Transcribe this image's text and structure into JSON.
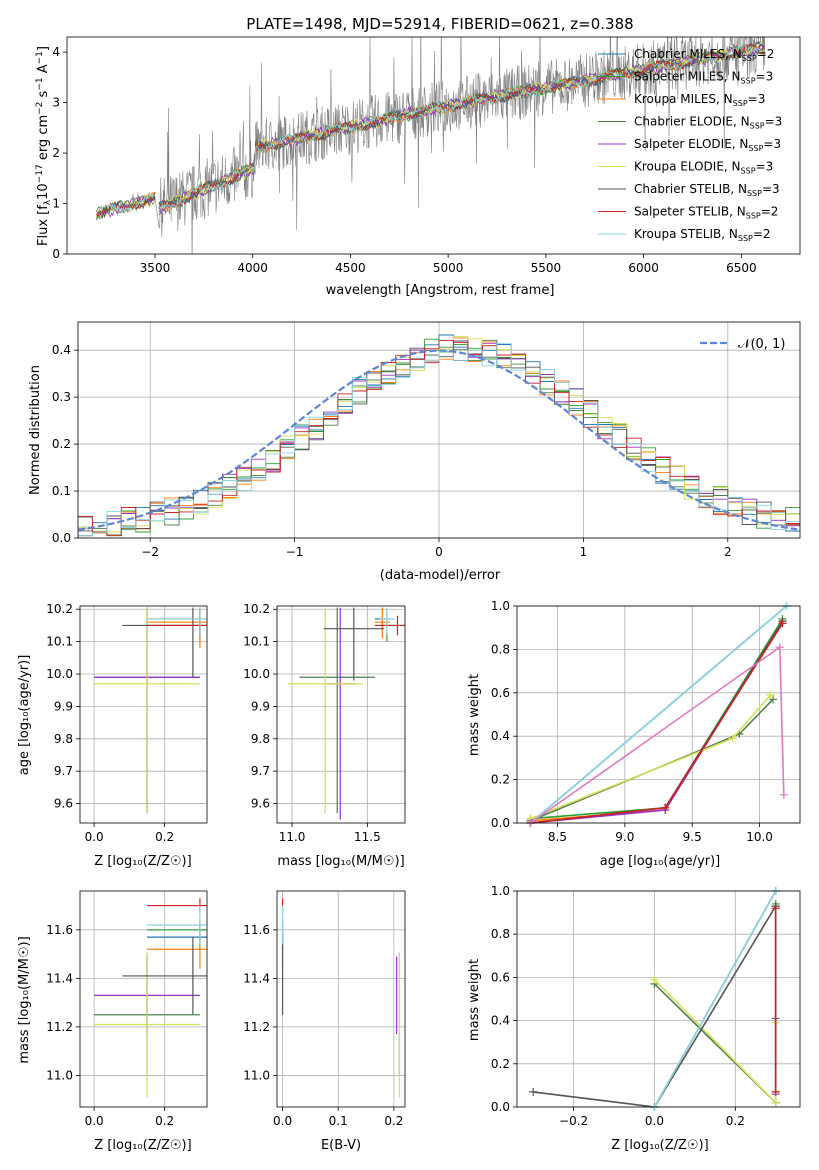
{
  "colors": {
    "Chabrier MILES": "#1f77b4",
    "Salpeter MILES": "#2ca02c",
    "Kroupa MILES": "#ff7f0e",
    "Chabrier ELODIE": "#4f7f4f",
    "Salpeter ELODIE": "#9932cc",
    "Kroupa ELODIE": "#d4e157",
    "Chabrier STELIB": "#555555",
    "Salpeter STELIB": "#cc2222",
    "Kroupa STELIB": "#8fd3e0",
    "data_gray": "#808080",
    "normal_curve": "#5b87d6",
    "pink": "#e377c2"
  },
  "chart_data": [
    {
      "id": "spectrum",
      "type": "line",
      "title": "PLATE=1498, MJD=52914, FIBERID=0621, z=0.388",
      "xlabel": "wavelength [Angstrom, rest frame]",
      "ylabel_main": "Flux [f",
      "ylabel_sub": "λ",
      "ylabel_unit": "10",
      "ylabel_exp": "−17",
      "ylabel_rest": " erg cm",
      "ylabel_exp2": "−2",
      "ylabel_s": " s",
      "ylabel_exp3": "−1",
      "ylabel_a": " A",
      "ylabel_exp4": "−1",
      "ylabel_end": "]",
      "xlim": [
        3050,
        6800
      ],
      "ylim": [
        0,
        4.3
      ],
      "xticks": [
        "3500",
        "4000",
        "4500",
        "5000",
        "5500",
        "6000",
        "6500"
      ],
      "xtick_values": [
        3500,
        4000,
        4500,
        5000,
        5500,
        6000,
        6500
      ],
      "yticks": [
        "0",
        "1",
        "2",
        "3",
        "4"
      ],
      "ytick_values": [
        0,
        1,
        2,
        3,
        4
      ],
      "legend": [
        {
          "name": "Chabrier MILES, N",
          "sub": "SSP",
          "tail": "=2"
        },
        {
          "name": "Salpeter MILES, N",
          "sub": "SSP",
          "tail": "=3"
        },
        {
          "name": "Kroupa MILES, N",
          "sub": "SSP",
          "tail": "=3"
        },
        {
          "name": "Chabrier ELODIE, N",
          "sub": "SSP",
          "tail": "=3"
        },
        {
          "name": "Salpeter ELODIE, N",
          "sub": "SSP",
          "tail": "=3"
        },
        {
          "name": "Kroupa ELODIE, N",
          "sub": "SSP",
          "tail": "=3"
        },
        {
          "name": "Chabrier STELIB, N",
          "sub": "SSP",
          "tail": "=3"
        },
        {
          "name": "Salpeter STELIB, N",
          "sub": "SSP",
          "tail": "=2"
        },
        {
          "name": "Kroupa STELIB, N",
          "sub": "SSP",
          "tail": "=2"
        }
      ],
      "legend_placement": "top-right",
      "model_segments": [
        {
          "x": [
            3200,
            3500
          ],
          "y": [
            0.8,
            1.1
          ]
        },
        {
          "x": [
            3520,
            4010
          ],
          "y": [
            0.9,
            1.7
          ]
        },
        {
          "x": [
            4010,
            4950
          ],
          "y": [
            2.1,
            2.9
          ]
        },
        {
          "x": [
            4950,
            6620
          ],
          "y": [
            2.9,
            4.1
          ]
        }
      ]
    },
    {
      "id": "residuals",
      "type": "line",
      "xlabel": "(data-model)/error",
      "ylabel": "Normed distribution",
      "xlim": [
        -2.5,
        2.5
      ],
      "ylim": [
        0,
        0.46
      ],
      "xticks": [
        "−2",
        "−1",
        "0",
        "1",
        "2"
      ],
      "xtick_values": [
        -2,
        -1,
        0,
        1,
        2
      ],
      "yticks": [
        "0.0",
        "0.1",
        "0.2",
        "0.3",
        "0.4"
      ],
      "ytick_values": [
        0,
        0.1,
        0.2,
        0.3,
        0.4
      ],
      "legend_label": "𝒩(0, 1)",
      "legend_placement": "top-right",
      "grid": true,
      "normal_mean": 0,
      "normal_sigma": 1
    },
    {
      "id": "age_vs_Z",
      "type": "scatter",
      "xlabel": "Z [log₁₀(Z/Z☉)]",
      "ylabel": "age  [log₁₀(age/yr)]",
      "xlim": [
        -0.04,
        0.32
      ],
      "ylim": [
        9.54,
        10.21
      ],
      "xticks": [
        "0.0",
        "0.2"
      ],
      "xtick_values": [
        0,
        0.2
      ],
      "yticks": [
        "9.6",
        "9.7",
        "9.8",
        "9.9",
        "10.0",
        "10.1",
        "10.2"
      ],
      "ytick_values": [
        9.6,
        9.7,
        9.8,
        9.9,
        10.0,
        10.1,
        10.2
      ],
      "points": [
        {
          "model": "Chabrier MILES",
          "x": 0.3,
          "y": 10.17,
          "xerr": 0.15,
          "yerr": 0.05
        },
        {
          "model": "Salpeter MILES",
          "x": 0.3,
          "y": 10.15,
          "xerr": 0.15,
          "yerr": 0.05
        },
        {
          "model": "Kroupa MILES",
          "x": 0.3,
          "y": 10.16,
          "xerr": 0.15,
          "yerr": 0.08
        },
        {
          "model": "Chabrier ELODIE",
          "x": 0.15,
          "y": 9.99,
          "xerr": 0.15,
          "yerr": 0.42
        },
        {
          "model": "Salpeter ELODIE",
          "x": 0.15,
          "y": 9.99,
          "xerr": 0.15,
          "yerr": 0.42
        },
        {
          "model": "Kroupa ELODIE",
          "x": 0.15,
          "y": 9.97,
          "xerr": 0.15,
          "yerr": 0.4
        },
        {
          "model": "Chabrier STELIB",
          "x": 0.28,
          "y": 10.15,
          "xerr": 0.2,
          "yerr": 0.16
        },
        {
          "model": "Salpeter STELIB",
          "x": 0.3,
          "y": 10.15,
          "xerr": 0.15,
          "yerr": 0.03
        },
        {
          "model": "Kroupa STELIB",
          "x": 0.3,
          "y": 10.17,
          "xerr": 0.15,
          "yerr": 0.05
        }
      ]
    },
    {
      "id": "age_vs_mass",
      "type": "scatter",
      "xlabel": "mass [log₁₀(M/M☉)]",
      "xlim": [
        10.9,
        11.75
      ],
      "ylim": [
        9.54,
        10.21
      ],
      "xticks": [
        "11.0",
        "11.5"
      ],
      "xtick_values": [
        11.0,
        11.5
      ],
      "yticks": [
        "9.6",
        "9.7",
        "9.8",
        "9.9",
        "10.0",
        "10.1",
        "10.2"
      ],
      "ytick_values": [
        9.6,
        9.7,
        9.8,
        9.9,
        10.0,
        10.1,
        10.2
      ],
      "points": [
        {
          "model": "Chabrier MILES",
          "x": 11.6,
          "y": 10.17,
          "xerr": 0.05,
          "yerr": 0.05
        },
        {
          "model": "Salpeter MILES",
          "x": 11.63,
          "y": 10.15,
          "xerr": 0.05,
          "yerr": 0.05
        },
        {
          "model": "Kroupa MILES",
          "x": 11.6,
          "y": 10.16,
          "xerr": 0.05,
          "yerr": 0.05
        },
        {
          "model": "Chabrier ELODIE",
          "x": 11.3,
          "y": 9.99,
          "xerr": 0.25,
          "yerr": 0.42
        },
        {
          "model": "Salpeter ELODIE",
          "x": 11.32,
          "y": 9.97,
          "xerr": 0.1,
          "yerr": 0.42
        },
        {
          "model": "Kroupa ELODIE",
          "x": 11.22,
          "y": 9.97,
          "xerr": 0.25,
          "yerr": 0.4
        },
        {
          "model": "Chabrier STELIB",
          "x": 11.41,
          "y": 10.14,
          "xerr": 0.2,
          "yerr": 0.16
        },
        {
          "model": "Salpeter STELIB",
          "x": 11.7,
          "y": 10.15,
          "xerr": 0.15,
          "yerr": 0.03
        },
        {
          "model": "Kroupa STELIB",
          "x": 11.63,
          "y": 10.17,
          "xerr": 0.05,
          "yerr": 0.05
        }
      ]
    },
    {
      "id": "massweight_vs_age",
      "type": "line",
      "xlabel": "age  [log₁₀(age/yr)]",
      "ylabel": "mass weight",
      "xlim": [
        8.2,
        10.3
      ],
      "ylim": [
        0,
        1
      ],
      "xticks": [
        "8.5",
        "9.0",
        "9.5",
        "10.0"
      ],
      "xtick_values": [
        8.5,
        9.0,
        9.5,
        10.0
      ],
      "yticks": [
        "0.0",
        "0.2",
        "0.4",
        "0.6",
        "0.8",
        "1.0"
      ],
      "ytick_values": [
        0,
        0.2,
        0.4,
        0.6,
        0.8,
        1.0
      ],
      "grid": true,
      "series": [
        {
          "model": "Chabrier MILES",
          "x": [
            8.3,
            10.2
          ],
          "y": [
            0.0,
            1.0
          ]
        },
        {
          "model": "Salpeter MILES",
          "x": [
            8.3,
            9.3,
            10.17
          ],
          "y": [
            0.02,
            0.07,
            0.94
          ]
        },
        {
          "model": "Kroupa MILES",
          "x": [
            8.3,
            9.3,
            10.17
          ],
          "y": [
            0.01,
            0.06,
            0.93
          ]
        },
        {
          "model": "Chabrier ELODIE",
          "x": [
            8.3,
            9.85,
            10.1
          ],
          "y": [
            0.01,
            0.41,
            0.57
          ]
        },
        {
          "model": "Salpeter ELODIE",
          "x": [
            8.3,
            9.3,
            10.17
          ],
          "y": [
            0.0,
            0.06,
            0.93
          ]
        },
        {
          "model": "Kroupa ELODIE",
          "x": [
            8.3,
            9.8,
            10.08
          ],
          "y": [
            0.02,
            0.39,
            0.59
          ]
        },
        {
          "model": "Chabrier STELIB",
          "x": [
            8.3,
            9.3,
            10.17
          ],
          "y": [
            0.0,
            0.07,
            0.93
          ]
        },
        {
          "model": "Salpeter STELIB",
          "x": [
            8.3,
            9.3,
            10.17
          ],
          "y": [
            0.0,
            0.07,
            0.92
          ]
        },
        {
          "model": "Kroupa STELIB",
          "x": [
            8.3,
            10.2
          ],
          "y": [
            0.0,
            1.0
          ]
        }
      ],
      "extra_series": [
        {
          "color_key": "pink",
          "x": [
            8.3,
            10.15,
            10.18
          ],
          "y": [
            0.0,
            0.81,
            0.13
          ]
        }
      ]
    },
    {
      "id": "mass_vs_Z",
      "type": "scatter",
      "xlabel": "Z [log₁₀(Z/Z☉)]",
      "ylabel": "mass [log₁₀(M/M☉)]",
      "xlim": [
        -0.04,
        0.32
      ],
      "ylim": [
        10.87,
        11.76
      ],
      "xticks": [
        "0.0",
        "0.2"
      ],
      "xtick_values": [
        0,
        0.2
      ],
      "yticks": [
        "11.0",
        "11.2",
        "11.4",
        "11.6"
      ],
      "ytick_values": [
        11.0,
        11.2,
        11.4,
        11.6
      ],
      "points": [
        {
          "model": "Chabrier MILES",
          "x": 0.3,
          "y": 11.57,
          "xerr": 0.15,
          "yerr": 0.05
        },
        {
          "model": "Salpeter MILES",
          "x": 0.3,
          "y": 11.6,
          "xerr": 0.15,
          "yerr": 0.05
        },
        {
          "model": "Kroupa MILES",
          "x": 0.3,
          "y": 11.52,
          "xerr": 0.15,
          "yerr": 0.08
        },
        {
          "model": "Chabrier ELODIE",
          "x": 0.15,
          "y": 11.25,
          "xerr": 0.15,
          "yerr": 0.25
        },
        {
          "model": "Salpeter ELODIE",
          "x": 0.15,
          "y": 11.33,
          "xerr": 0.15,
          "yerr": 0.16
        },
        {
          "model": "Kroupa ELODIE",
          "x": 0.15,
          "y": 11.21,
          "xerr": 0.15,
          "yerr": 0.3
        },
        {
          "model": "Chabrier STELIB",
          "x": 0.28,
          "y": 11.41,
          "xerr": 0.2,
          "yerr": 0.16
        },
        {
          "model": "Salpeter STELIB",
          "x": 0.3,
          "y": 11.7,
          "xerr": 0.15,
          "yerr": 0.03
        },
        {
          "model": "Kroupa STELIB",
          "x": 0.3,
          "y": 11.62,
          "xerr": 0.15,
          "yerr": 0.08
        }
      ]
    },
    {
      "id": "mass_vs_EBV",
      "type": "scatter",
      "xlabel": "E(B-V)",
      "xlim": [
        -0.01,
        0.22
      ],
      "ylim": [
        10.87,
        11.76
      ],
      "xticks": [
        "0.0",
        "0.1",
        "0.2"
      ],
      "xtick_values": [
        0,
        0.1,
        0.2
      ],
      "yticks": [
        "11.0",
        "11.2",
        "11.4",
        "11.6"
      ],
      "ytick_values": [
        11.0,
        11.2,
        11.4,
        11.6
      ],
      "points": [
        {
          "model": "Chabrier MILES",
          "x": 0.0,
          "y": 11.57,
          "yerr": 0.05
        },
        {
          "model": "Salpeter MILES",
          "x": 0.0,
          "y": 11.6,
          "yerr": 0.05
        },
        {
          "model": "Kroupa MILES",
          "x": 0.0,
          "y": 11.52,
          "yerr": 0.08
        },
        {
          "model": "Chabrier ELODIE",
          "x": 0.21,
          "y": 11.25,
          "yerr": 0.25
        },
        {
          "model": "Salpeter ELODIE",
          "x": 0.205,
          "y": 11.33,
          "yerr": 0.16
        },
        {
          "model": "Kroupa ELODIE",
          "x": 0.21,
          "y": 11.21,
          "yerr": 0.3
        },
        {
          "model": "Chabrier STELIB",
          "x": 0.0,
          "y": 11.41,
          "yerr": 0.16
        },
        {
          "model": "Salpeter STELIB",
          "x": 0.0,
          "y": 11.7,
          "yerr": 0.03
        },
        {
          "model": "Kroupa STELIB",
          "x": 0.0,
          "y": 11.62,
          "yerr": 0.08
        }
      ]
    },
    {
      "id": "massweight_vs_Z",
      "type": "line",
      "xlabel": "Z [log₁₀(Z/Z☉)]",
      "ylabel": "mass weight",
      "xlim": [
        -0.34,
        0.36
      ],
      "ylim": [
        0,
        1
      ],
      "xticks": [
        "−0.2",
        "0.0",
        "0.2"
      ],
      "xtick_values": [
        -0.2,
        0,
        0.2
      ],
      "yticks": [
        "0.0",
        "0.2",
        "0.4",
        "0.6",
        "0.8",
        "1.0"
      ],
      "ytick_values": [
        0,
        0.2,
        0.4,
        0.6,
        0.8,
        1.0
      ],
      "grid": true,
      "series": [
        {
          "model": "Chabrier MILES",
          "x": [
            0.0,
            0.3
          ],
          "y": [
            0.0,
            1.0
          ]
        },
        {
          "model": "Salpeter MILES",
          "x": [
            0.3,
            0.3
          ],
          "y": [
            0.07,
            0.94
          ]
        },
        {
          "model": "Kroupa MILES",
          "x": [
            0.3,
            0.3
          ],
          "y": [
            0.06,
            0.93
          ]
        },
        {
          "model": "Chabrier ELODIE",
          "x": [
            0.0,
            0.3,
            0.3
          ],
          "y": [
            0.57,
            0.02,
            0.41
          ]
        },
        {
          "model": "Salpeter ELODIE",
          "x": [
            0.3,
            0.3
          ],
          "y": [
            0.06,
            0.93
          ]
        },
        {
          "model": "Kroupa ELODIE",
          "x": [
            0.0,
            0.3,
            0.3
          ],
          "y": [
            0.59,
            0.02,
            0.39
          ]
        },
        {
          "model": "Chabrier STELIB",
          "x": [
            -0.3,
            0.0,
            0.3
          ],
          "y": [
            0.07,
            0.0,
            0.93
          ]
        },
        {
          "model": "Salpeter STELIB",
          "x": [
            0.3,
            0.3
          ],
          "y": [
            0.07,
            0.92
          ]
        },
        {
          "model": "Kroupa STELIB",
          "x": [
            0.0,
            0.3
          ],
          "y": [
            0.0,
            1.0
          ]
        }
      ]
    }
  ]
}
